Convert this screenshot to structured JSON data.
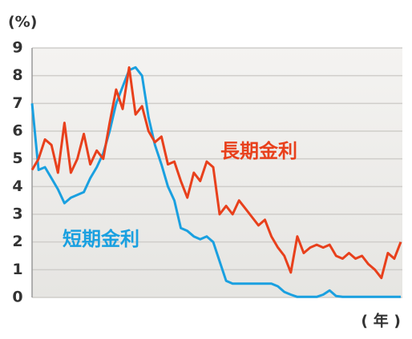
{
  "chart_data": {
    "type": "line",
    "y_label": "(%)",
    "x_label": "( 年 )",
    "categories": [
      null,
      null,
      null,
      null,
      null,
      null,
      null,
      null,
      null,
      null,
      null,
      null,
      null,
      null,
      null,
      null,
      null,
      null,
      null,
      null,
      null,
      null,
      null,
      null,
      null,
      null,
      null,
      null,
      null,
      null,
      null,
      null,
      null,
      null,
      null,
      null,
      null,
      null,
      null,
      null,
      null,
      null,
      null,
      null,
      null,
      null,
      null,
      null,
      null,
      null,
      null,
      null,
      null,
      null,
      null,
      null,
      null,
      null
    ],
    "series": [
      {
        "name": "長期金利",
        "color": "#e8401c",
        "values": [
          4.6,
          5.0,
          5.7,
          5.5,
          4.5,
          6.3,
          4.5,
          5.0,
          5.9,
          4.8,
          5.3,
          5.0,
          6.3,
          7.5,
          6.8,
          8.3,
          6.6,
          6.9,
          6.0,
          5.6,
          5.8,
          4.8,
          4.9,
          4.2,
          3.6,
          4.5,
          4.2,
          4.9,
          4.7,
          3.0,
          3.3,
          3.0,
          3.5,
          3.2,
          2.9,
          2.6,
          2.8,
          2.2,
          1.8,
          1.5,
          0.9,
          2.2,
          1.6,
          1.8,
          1.9,
          1.8,
          1.9,
          1.5,
          1.4,
          1.6,
          1.4,
          1.5,
          1.2,
          1.0,
          0.7,
          1.6,
          1.4,
          2.0
        ]
      },
      {
        "name": "短期金利",
        "color": "#1aa0e0",
        "values": [
          7.0,
          4.6,
          4.7,
          4.3,
          3.9,
          3.4,
          3.6,
          3.7,
          3.8,
          4.3,
          4.7,
          5.2,
          6.0,
          7.0,
          7.6,
          8.2,
          8.3,
          8.0,
          6.5,
          5.5,
          4.8,
          4.0,
          3.5,
          2.5,
          2.4,
          2.2,
          2.1,
          2.2,
          2.0,
          1.3,
          0.6,
          0.5,
          0.5,
          0.5,
          0.5,
          0.5,
          0.5,
          0.5,
          0.4,
          0.2,
          0.1,
          0.02,
          0.02,
          0.02,
          0.02,
          0.1,
          0.25,
          0.05,
          0.02,
          0.02,
          0.02,
          0.02,
          0.02,
          0.02,
          0.02,
          0.02,
          0.02,
          0.02
        ]
      }
    ],
    "ylim": [
      0,
      9
    ],
    "yticks": [
      0,
      1,
      2,
      3,
      4,
      5,
      6,
      7,
      8,
      9
    ],
    "grid": true
  }
}
